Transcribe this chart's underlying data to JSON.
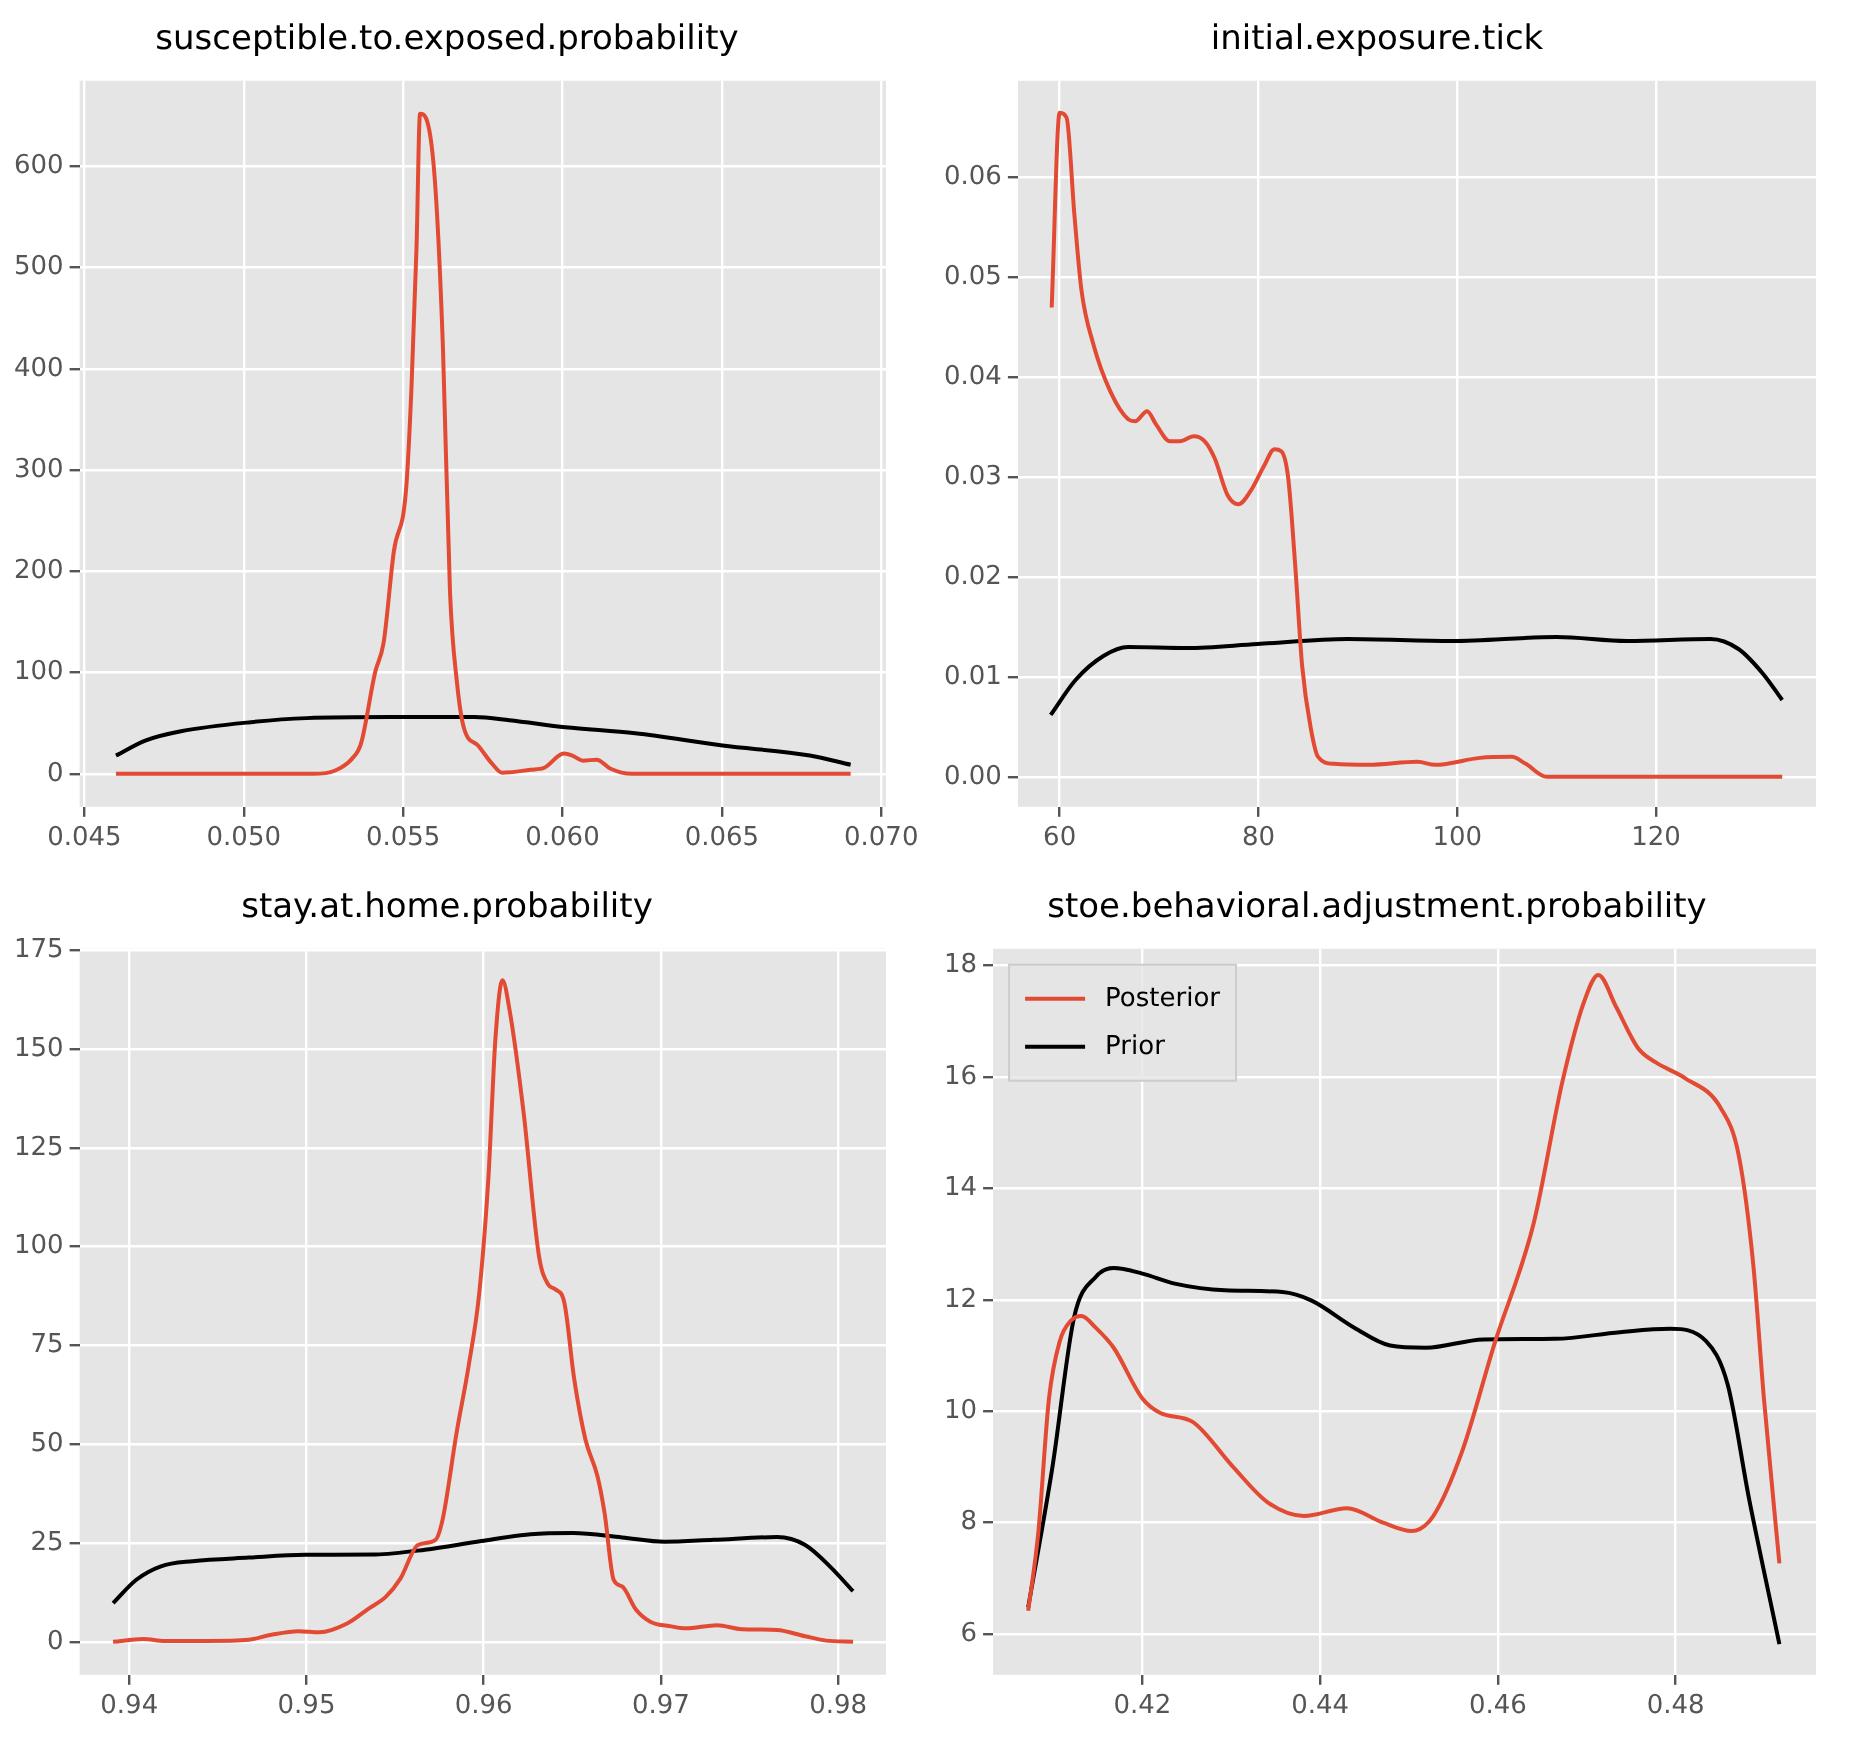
{
  "chart_data": [
    {
      "type": "line",
      "title": "susceptible.to.exposed.probability",
      "xlim": [
        0.04485,
        0.07015
      ],
      "ylim": [
        -32.6,
        684.6
      ],
      "xticks": [
        0.045,
        {
          "value": 0.05,
          "label": "0.050"
        },
        0.055,
        {
          "value": 0.06,
          "label": "0.060"
        },
        0.065,
        {
          "value": 0.07,
          "label": "0.070"
        }
      ],
      "yticks": [
        0,
        100,
        200,
        300,
        400,
        500,
        600
      ],
      "grid": true,
      "series": [
        {
          "color": "#e24a33",
          "x": [
            0.04599,
            0.05219,
            0.05285,
            0.0534,
            0.05368,
            0.05412,
            0.05439,
            0.05471,
            0.05509,
            0.05526,
            0.05542,
            0.05553,
            0.05575,
            0.05601,
            0.05625,
            0.05647,
            0.05669,
            0.05691,
            0.05735,
            0.05779,
            0.05811,
            0.05899,
            0.05943,
            0.06004,
            0.06031,
            0.06064,
            0.06107,
            0.06151,
            0.06217,
            0.06904
          ],
          "values": [
            0,
            0,
            3,
            15,
            30,
            100,
            130,
            220,
            280,
            380,
            520,
            652,
            645,
            580,
            420,
            180,
            90,
            45,
            28,
            10,
            1,
            4,
            6,
            20,
            18,
            13,
            14,
            5,
            0,
            0
          ]
        },
        {
          "color": "#000000",
          "x": [
            0.04599,
            0.04693,
            0.04803,
            0.05022,
            0.05197,
            0.05461,
            0.05724,
            0.05833,
            0.06009,
            0.06228,
            0.06502,
            0.06776,
            0.06904
          ],
          "values": [
            18,
            33,
            42,
            51,
            55,
            56,
            56,
            53,
            46,
            40,
            28,
            18,
            9
          ]
        }
      ]
    },
    {
      "type": "line",
      "title": "initial.exposure.tick",
      "xlim": [
        55.8,
        136.1
      ],
      "ylim": [
        -0.003,
        0.0697
      ],
      "xticks": [
        60,
        80,
        100,
        120
      ],
      "yticks": [
        {
          "value": 0,
          "label": "0.00"
        },
        {
          "value": 0.01,
          "label": "0.01"
        },
        {
          "value": 0.02,
          "label": "0.02"
        },
        {
          "value": 0.03,
          "label": "0.03"
        },
        {
          "value": 0.04,
          "label": "0.04"
        },
        {
          "value": 0.05,
          "label": "0.05"
        },
        {
          "value": 0.06,
          "label": "0.06"
        }
      ],
      "grid": true,
      "series": [
        {
          "color": "#e24a33",
          "x": [
            59.2,
            60,
            60.7,
            61.5,
            62.2,
            63.4,
            65.1,
            66.9,
            67.6,
            68.8,
            69.7,
            71.1,
            72.1,
            73.5,
            74.6,
            75.6,
            76.9,
            78,
            79.2,
            80.6,
            81.6,
            82.3,
            83,
            83.7,
            84.4,
            85.3,
            86,
            87.6,
            91.1,
            96,
            97.8,
            102.3,
            105.5,
            106.9,
            109,
            132.7
          ],
          "values": [
            0.047,
            0.0665,
            0.066,
            0.0561,
            0.0487,
            0.0433,
            0.0386,
            0.0358,
            0.0356,
            0.0366,
            0.0353,
            0.0336,
            0.0336,
            0.0341,
            0.0336,
            0.0319,
            0.0282,
            0.0273,
            0.0286,
            0.0312,
            0.0328,
            0.0326,
            0.0299,
            0.0212,
            0.0111,
            0.0047,
            0.002,
            0.0013,
            0.0012,
            0.0015,
            0.0012,
            0.0019,
            0.002,
            0.0013,
            0,
            0
          ]
        },
        {
          "color": "#000000",
          "x": [
            59.1,
            61.6,
            64.4,
            66.9,
            72.8,
            79.9,
            89,
            99.5,
            110,
            117.1,
            125.5,
            128.3,
            130.7,
            132.7
          ],
          "values": [
            0.0062,
            0.0097,
            0.0121,
            0.013,
            0.0129,
            0.0133,
            0.0138,
            0.0136,
            0.014,
            0.0136,
            0.0138,
            0.0128,
            0.0104,
            0.0077
          ]
        }
      ]
    },
    {
      "type": "line",
      "title": "stay.at.home.probability",
      "xlim": [
        0.9372,
        0.9827
      ],
      "ylim": [
        -8.35,
        175.35
      ],
      "xticks": [
        0.94,
        0.95,
        0.96,
        0.97,
        0.98
      ],
      "yticks": [
        0,
        25,
        50,
        75,
        100,
        125,
        150,
        175
      ],
      "grid": true,
      "series": [
        {
          "color": "#e24a33",
          "x": [
            0.93909,
            0.94079,
            0.942,
            0.94437,
            0.94675,
            0.94795,
            0.94954,
            0.95072,
            0.95232,
            0.95351,
            0.9545,
            0.9553,
            0.95629,
            0.95728,
            0.95768,
            0.95847,
            0.95915,
            0.95975,
            0.96026,
            0.96066,
            0.96106,
            0.96145,
            0.96225,
            0.96312,
            0.96364,
            0.96404,
            0.96455,
            0.96511,
            0.96574,
            0.96642,
            0.96682,
            0.96733,
            0.96781,
            0.9686,
            0.9694,
            0.97059,
            0.97139,
            0.97317,
            0.97456,
            0.97655,
            0.97814,
            0.97933,
            0.98084
          ],
          "values": [
            0,
            0.7,
            0.2,
            0.2,
            0.5,
            1.7,
            2.7,
            2.4,
            4.7,
            8.4,
            11.5,
            16,
            24.5,
            25.8,
            30.9,
            52.9,
            69.8,
            88.3,
            117,
            152.5,
            167.4,
            160.1,
            134,
            97.6,
            90.4,
            89.2,
            85.8,
            66.4,
            51.2,
            41.9,
            32.6,
            15.7,
            14,
            8.1,
            5.1,
            3.9,
            3.4,
            4.2,
            3.2,
            3,
            1.4,
            0.3,
            0
          ]
        },
        {
          "color": "#000000",
          "x": [
            0.93909,
            0.9404,
            0.94179,
            0.94358,
            0.94675,
            0.94993,
            0.9539,
            0.95669,
            0.95987,
            0.96265,
            0.96503,
            0.96781,
            0.9702,
            0.97298,
            0.97655,
            0.97814,
            0.97953,
            0.98084
          ],
          "values": [
            9.8,
            15.7,
            19.1,
            20.4,
            21.3,
            22,
            22.1,
            23.3,
            25.5,
            27.2,
            27.5,
            26.4,
            25.3,
            25.8,
            26.5,
            24.5,
            19.1,
            12.8
          ]
        }
      ]
    },
    {
      "type": "line",
      "title": "stoe.behavioral.adjustment.probability",
      "xlim": [
        0.4032,
        0.4958
      ],
      "ylim": [
        5.27,
        18.3
      ],
      "xticks": [
        0.42,
        0.44,
        0.46,
        0.48
      ],
      "yticks": [
        6,
        8,
        10,
        12,
        14,
        16,
        18
      ],
      "grid": true,
      "legend": "top left",
      "series": [
        {
          "name": "Posterior",
          "color": "#e24a33",
          "x": [
            0.40715,
            0.40828,
            0.40949,
            0.41071,
            0.41192,
            0.41313,
            0.41475,
            0.41677,
            0.42,
            0.42202,
            0.42566,
            0.4301,
            0.43414,
            0.43818,
            0.44303,
            0.44707,
            0.4503,
            0.45273,
            0.45596,
            0.4596,
            0.46404,
            0.46727,
            0.4697,
            0.47131,
            0.47333,
            0.47576,
            0.47778,
            0.48105,
            0.48509,
            0.48711,
            0.48873,
            0.48994,
            0.49168
          ],
          "values": [
            6.42,
            7.81,
            10.23,
            11.26,
            11.62,
            11.71,
            11.5,
            11.14,
            10.23,
            9.97,
            9.81,
            9.02,
            8.36,
            8.12,
            8.26,
            8,
            7.85,
            8.12,
            9.27,
            11.2,
            13.38,
            15.92,
            17.35,
            17.83,
            17.25,
            16.52,
            16.26,
            15.98,
            15.44,
            14.59,
            12.65,
            10.23,
            7.27
          ]
        },
        {
          "name": "Prior",
          "color": "#000000",
          "x": [
            0.40715,
            0.4099,
            0.41232,
            0.41475,
            0.41677,
            0.42,
            0.42364,
            0.42929,
            0.43576,
            0.43899,
            0.44384,
            0.44788,
            0.45192,
            0.45838,
            0.46646,
            0.47374,
            0.4794,
            0.48343,
            0.48586,
            0.48828,
            0.49168
          ],
          "values": [
            6.48,
            9.02,
            11.69,
            12.41,
            12.57,
            12.47,
            12.29,
            12.17,
            12.14,
            11.99,
            11.5,
            11.18,
            11.14,
            11.29,
            11.3,
            11.42,
            11.48,
            11.26,
            10.48,
            8.42,
            5.82
          ]
        }
      ]
    }
  ]
}
